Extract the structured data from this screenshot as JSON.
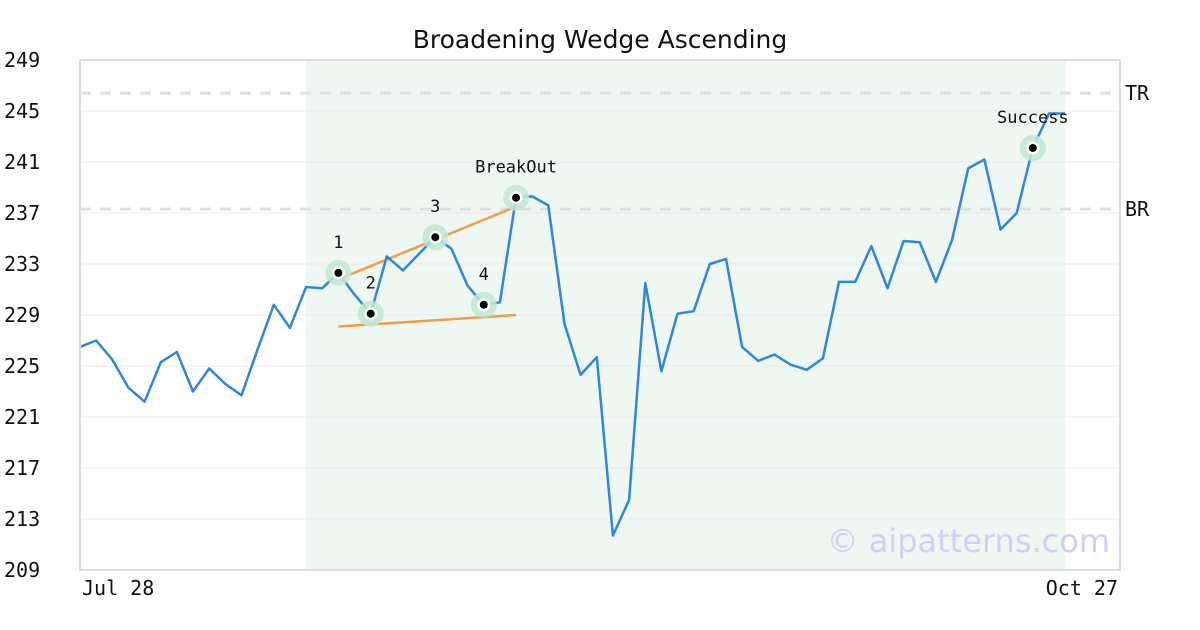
{
  "chart_data": {
    "type": "line",
    "title": "Broadening Wedge Ascending",
    "xlabel": "",
    "ylabel": "",
    "ylim": [
      209,
      249
    ],
    "y_ticks": [
      209,
      213,
      217,
      221,
      225,
      229,
      233,
      237,
      241,
      245,
      249
    ],
    "x_tick_labels": [
      "Jul 28",
      "Oct 27"
    ],
    "grid": "horizontal",
    "series": [
      {
        "values": [
          226.5,
          227.0,
          225.5,
          223.3,
          222.2,
          225.3,
          226.1,
          223.0,
          224.8,
          223.6,
          222.7,
          226.3,
          229.8,
          228.0,
          231.2,
          231.1,
          232.3,
          230.6,
          229.1,
          233.6,
          232.5,
          233.8,
          235.1,
          234.2,
          231.3,
          229.8,
          230.0,
          238.2,
          238.3,
          237.6,
          228.3,
          224.3,
          225.7,
          211.7,
          214.5,
          231.5,
          224.6,
          229.1,
          229.3,
          233.0,
          233.4,
          226.5,
          225.4,
          225.9,
          225.1,
          224.7,
          225.6,
          231.6,
          231.6,
          234.4,
          231.1,
          234.8,
          234.7,
          231.6,
          234.9,
          240.5,
          241.2,
          235.7,
          237.0,
          242.1,
          244.8,
          244.8
        ]
      }
    ],
    "highlight_range": [
      14,
      61
    ],
    "reference_lines": [
      {
        "label": "TR",
        "value": 246.4
      },
      {
        "label": "BR",
        "value": 237.3
      }
    ],
    "trend_lines": [
      {
        "from": [
          16,
          231.8
        ],
        "to": [
          27,
          237.5
        ]
      },
      {
        "from": [
          16,
          228.1
        ],
        "to": [
          27,
          229.0
        ]
      }
    ],
    "points": [
      {
        "label": "1",
        "index": 16,
        "value": 232.3
      },
      {
        "label": "2",
        "index": 18,
        "value": 229.1
      },
      {
        "label": "3",
        "index": 22,
        "value": 235.1
      },
      {
        "label": "4",
        "index": 25,
        "value": 229.8
      },
      {
        "label": "BreakOut",
        "index": 27,
        "value": 238.2
      },
      {
        "label": "Success",
        "index": 59,
        "value": 242.1
      }
    ],
    "watermark": "© aipatterns.com",
    "colors": {
      "line": "#2f86dd",
      "trend": "#f29d48",
      "highlight": "#eef7f2",
      "marker_ring": "#bfe8d3",
      "reference": "#e0e0e0",
      "grid": "#e9e9e9",
      "axes": "#dddddd",
      "watermark": "#d0d0f4"
    }
  }
}
